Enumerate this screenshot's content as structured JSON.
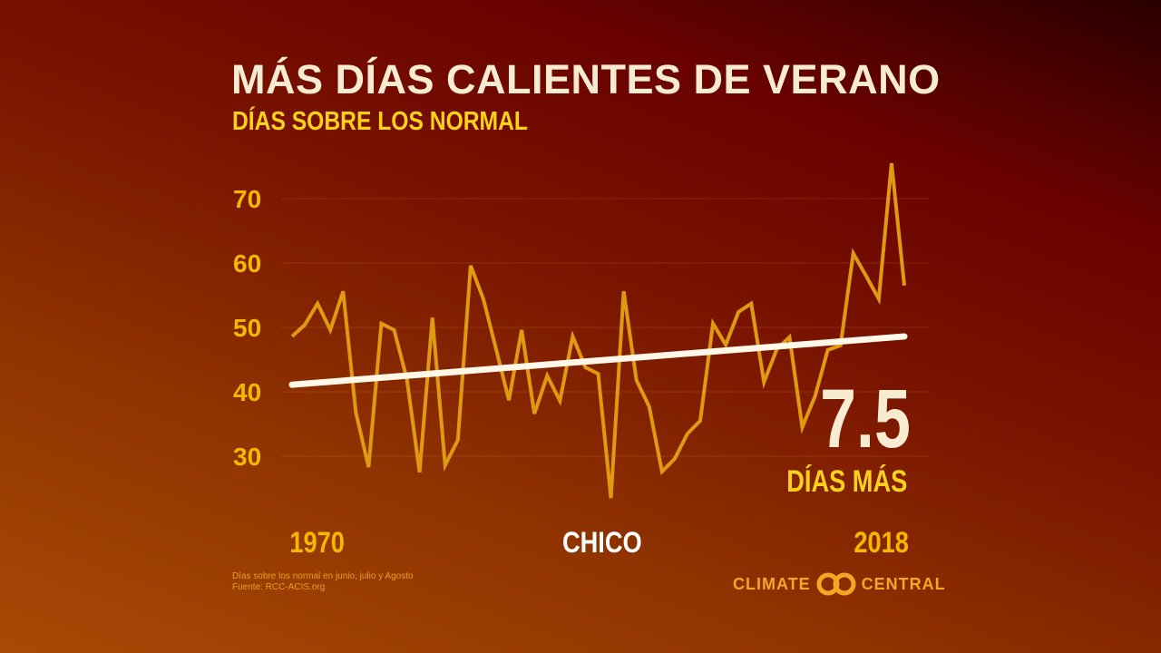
{
  "title": "MÁS DÍAS CALIENTES DE VERANO",
  "subtitle": "DÍAS SOBRE LOS NORMAL",
  "location": "CHICO",
  "highlight": {
    "value": "7.5",
    "label": "DÍAS MÁS"
  },
  "footnote": [
    "Días sobre los normal en junio, julio y Agosto",
    "Fuente: RCC-ACIS.org"
  ],
  "logo": {
    "left": "CLIMATE",
    "right": "CENTRAL"
  },
  "colors": {
    "line": "#e09a10",
    "trend": "#fff8e8",
    "ticks": "#f5b800"
  },
  "chart_data": {
    "type": "line",
    "title": "MÁS DÍAS CALIENTES DE VERANO",
    "xlim": [
      1970,
      2018
    ],
    "ylim": [
      22,
      78
    ],
    "x_tick_labels": [
      "1970",
      "2018"
    ],
    "y_ticks": [
      30,
      40,
      50,
      60,
      70
    ],
    "grid": true,
    "x": [
      1970,
      1971,
      1972,
      1973,
      1974,
      1975,
      1976,
      1977,
      1978,
      1979,
      1980,
      1981,
      1982,
      1983,
      1984,
      1985,
      1986,
      1987,
      1988,
      1989,
      1990,
      1991,
      1992,
      1993,
      1994,
      1995,
      1996,
      1997,
      1998,
      1999,
      2000,
      2001,
      2002,
      2003,
      2004,
      2005,
      2006,
      2007,
      2008,
      2009,
      2010,
      2011,
      2012,
      2013,
      2014,
      2015,
      2016,
      2017,
      2018
    ],
    "series": [
      {
        "values": [
          48.6,
          50.4,
          53.7,
          49.6,
          55.6,
          36.8,
          28.3,
          50.6,
          49.6,
          42,
          27.5,
          51.5,
          28.6,
          32.5,
          59.6,
          54.4,
          46.6,
          38.7,
          49.6,
          36.6,
          42.5,
          38.6,
          48.6,
          43.8,
          42.8,
          23.5,
          55.6,
          41.8,
          37.7,
          27.6,
          29.6,
          33.5,
          35.5,
          50.6,
          47.3,
          52.4,
          53.7,
          41.5,
          46.6,
          48.5,
          34.5,
          39.3,
          46.5,
          47.2,
          61.5,
          58,
          54.4,
          75.5,
          56.5
        ]
      }
    ],
    "trend": {
      "start": 41.1,
      "end": 48.6
    }
  }
}
